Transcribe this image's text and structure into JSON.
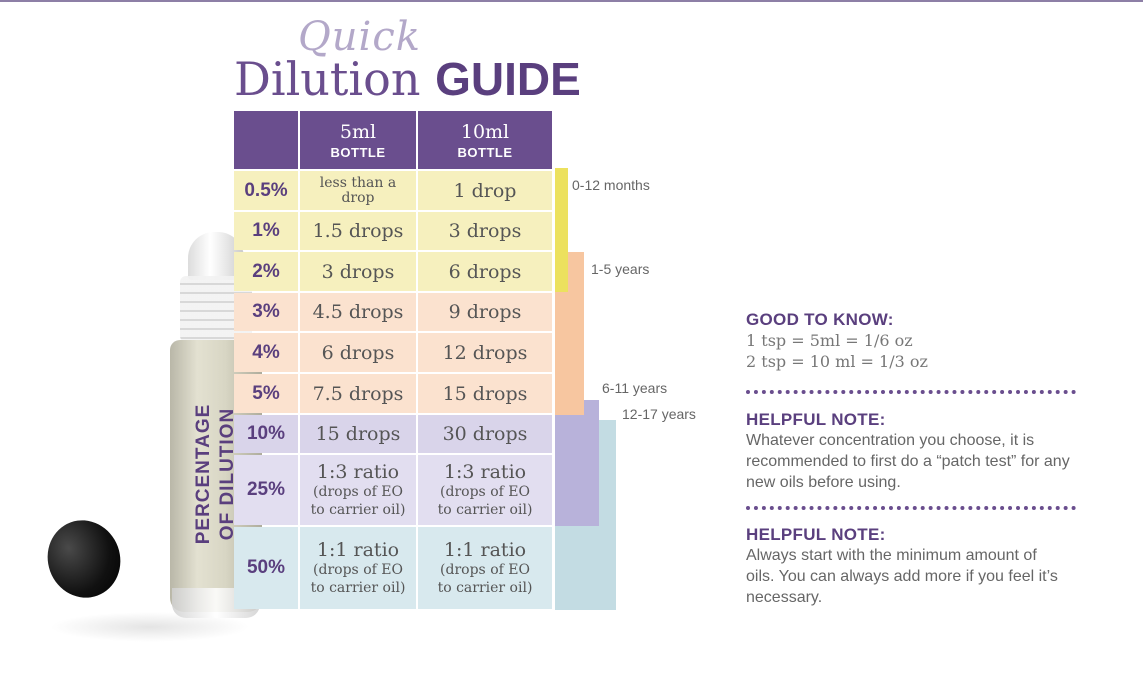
{
  "title": {
    "quick": "Quick",
    "dilution": "Dilution",
    "guide": "GUIDE"
  },
  "side_label": {
    "line1": "PERCENTAGE",
    "line2": "OF DILUTION"
  },
  "table": {
    "headers": [
      {
        "big": "5ml",
        "small": "BOTTLE"
      },
      {
        "big": "10ml",
        "small": "BOTTLE"
      }
    ],
    "rows": [
      {
        "pct": "0.5%",
        "ml5": "less than a drop",
        "ml10": "1 drop"
      },
      {
        "pct": "1%",
        "ml5": "1.5 drops",
        "ml10": "3 drops"
      },
      {
        "pct": "2%",
        "ml5": "3 drops",
        "ml10": "6 drops"
      },
      {
        "pct": "3%",
        "ml5": "4.5 drops",
        "ml10": "9 drops"
      },
      {
        "pct": "4%",
        "ml5": "6 drops",
        "ml10": "12 drops"
      },
      {
        "pct": "5%",
        "ml5": "7.5 drops",
        "ml10": "15 drops"
      },
      {
        "pct": "10%",
        "ml5": "15 drops",
        "ml10": "30 drops"
      },
      {
        "pct": "25%",
        "ml5": "1:3 ratio",
        "ml5_sub": "(drops of EO to carrier oil)",
        "ml10": "1:3 ratio",
        "ml10_sub": "(drops of EO to carrier oil)"
      },
      {
        "pct": "50%",
        "ml5": "1:1 ratio",
        "ml5_sub": "(drops of EO to carrier oil)",
        "ml10": "1:1 ratio",
        "ml10_sub": "(drops of EO to carrier oil)"
      }
    ],
    "row_colors": [
      "#f6f0be",
      "#f6f0be",
      "#f6f0be",
      "#fbe2cf",
      "#fbe2cf",
      "#fbe2cf",
      "#d9d4ea",
      "#e2def0",
      "#d8e9ee"
    ]
  },
  "age_groups": [
    {
      "label": "0-12 months",
      "color": "#ece15e"
    },
    {
      "label": "1-5 years",
      "color": "#f7c6a0"
    },
    {
      "label": "6-11 years",
      "color": "#b8b2da"
    },
    {
      "label": "12-17 years",
      "color": "#c3dce3"
    }
  ],
  "good_to_know": {
    "heading": "GOOD TO KNOW:",
    "line1": "1 tsp = 5ml = 1/6 oz",
    "line2": "2 tsp = 10 ml = 1/3 oz"
  },
  "note1": {
    "heading": "HELPFUL NOTE:",
    "text": "Whatever concentration you choose, it is recommended to first do a “patch test” for any new oils before using."
  },
  "note2": {
    "heading": "HELPFUL NOTE:",
    "text": "Always start with the minimum amount of oils. You can always add more if you feel it’s necessary."
  },
  "colors": {
    "purple": "#6a4e8e",
    "title_light": "#b3a8c9"
  }
}
